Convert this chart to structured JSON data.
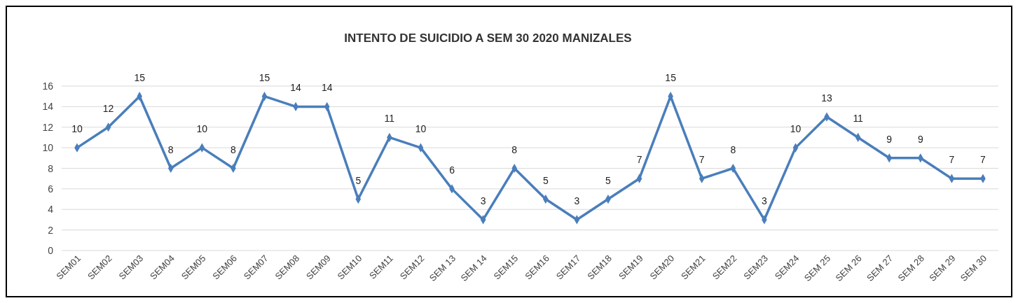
{
  "chart_data": {
    "type": "line",
    "title": "INTENTO DE SUICIDIO A SEM 30 2020 MANIZALES",
    "categories": [
      "SEM01",
      "SEM02",
      "SEM03",
      "SEM04",
      "SEM05",
      "SEM06",
      "SEM07",
      "SEM08",
      "SEM09",
      "SEM10",
      "SEM11",
      "SEM12",
      "SEM 13",
      "SEM 14",
      "SEM15",
      "SEM16",
      "SEM17",
      "SEM18",
      "SEM19",
      "SEM20",
      "SEM21",
      "SEM22",
      "SEM23",
      "SEM24",
      "SEM 25",
      "SEM 26",
      "SEM 27",
      "SEM 28",
      "SEM 29",
      "SEM 30"
    ],
    "series": [
      {
        "color": "#4a7ebb",
        "values": [
          10,
          12,
          15,
          8,
          10,
          8,
          15,
          14,
          14,
          5,
          11,
          10,
          6,
          3,
          8,
          5,
          3,
          5,
          7,
          15,
          7,
          8,
          3,
          10,
          13,
          11,
          9,
          9,
          7,
          7
        ]
      }
    ],
    "ylim": [
      0,
      16
    ],
    "yticks": [
      0,
      2,
      4,
      6,
      8,
      10,
      12,
      14,
      16
    ],
    "grid": "y",
    "marker": "diamond",
    "line_style": "solid",
    "data_labels": true
  }
}
